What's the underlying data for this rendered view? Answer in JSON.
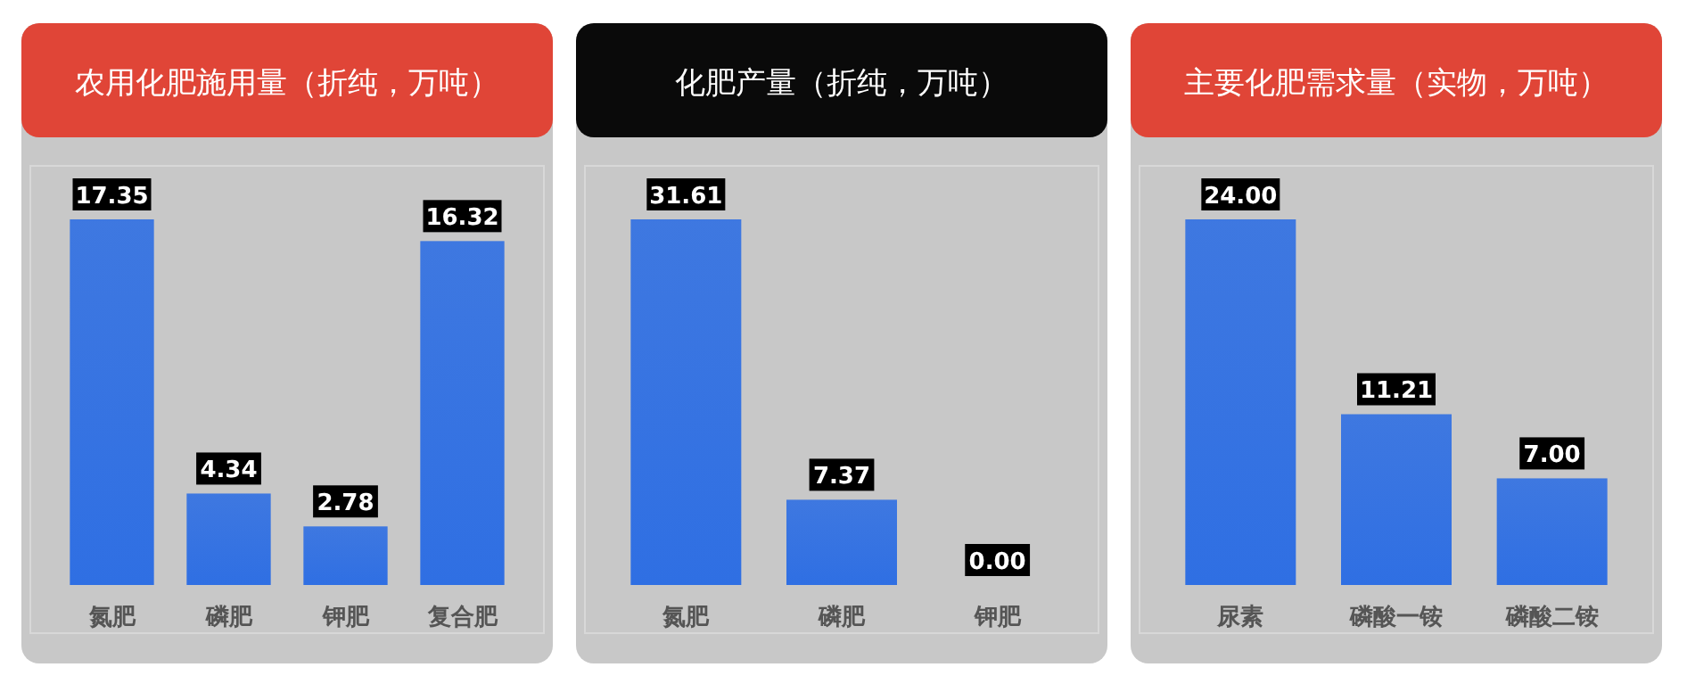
{
  "chart_data": [
    {
      "type": "bar",
      "title": "农用化肥施用量（折纯，万吨）",
      "categories": [
        "氮肥",
        "磷肥",
        "钾肥",
        "复合肥"
      ],
      "values": [
        17.35,
        4.34,
        2.78,
        16.32
      ],
      "value_labels": [
        "17.35",
        "4.34",
        "2.78",
        "16.32"
      ],
      "color": "#2f6fe3"
    },
    {
      "type": "bar",
      "title": "化肥产量（折纯，万吨）",
      "categories": [
        "氮肥",
        "磷肥",
        "钾肥"
      ],
      "values": [
        31.61,
        7.37,
        0
      ],
      "value_labels": [
        "31.61",
        "7.37",
        "0.00"
      ],
      "color": "#2f6fe3"
    },
    {
      "type": "bar",
      "title": "主要化肥需求量（实物，万吨）",
      "categories": [
        "尿素",
        "磷酸一铵",
        "磷酸二铵"
      ],
      "values": [
        24,
        11.21,
        7
      ],
      "value_labels": [
        "24.00",
        "11.21",
        "7.00"
      ],
      "color": "#2f6fe3"
    }
  ]
}
